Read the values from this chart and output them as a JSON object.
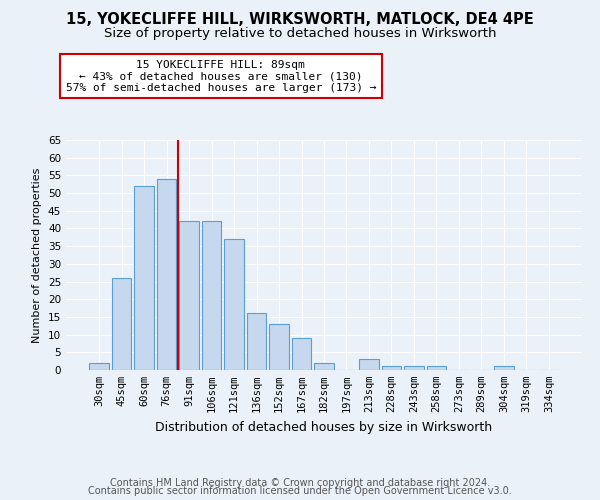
{
  "title1": "15, YOKECLIFFE HILL, WIRKSWORTH, MATLOCK, DE4 4PE",
  "title2": "Size of property relative to detached houses in Wirksworth",
  "xlabel": "Distribution of detached houses by size in Wirksworth",
  "ylabel": "Number of detached properties",
  "categories": [
    "30sqm",
    "45sqm",
    "60sqm",
    "76sqm",
    "91sqm",
    "106sqm",
    "121sqm",
    "136sqm",
    "152sqm",
    "167sqm",
    "182sqm",
    "197sqm",
    "213sqm",
    "228sqm",
    "243sqm",
    "258sqm",
    "273sqm",
    "289sqm",
    "304sqm",
    "319sqm",
    "334sqm"
  ],
  "values": [
    2,
    26,
    52,
    54,
    42,
    42,
    37,
    16,
    13,
    9,
    2,
    0,
    3,
    1,
    1,
    1,
    0,
    0,
    1,
    0,
    0
  ],
  "bar_color": "#c5d8ed",
  "bar_edge_color": "#5a9fd4",
  "vline_x": 3.5,
  "vline_color": "#cc0000",
  "annotation_line1": "15 YOKECLIFFE HILL: 89sqm",
  "annotation_line2": "← 43% of detached houses are smaller (130)",
  "annotation_line3": "57% of semi-detached houses are larger (173) →",
  "ylim": [
    0,
    65
  ],
  "yticks": [
    0,
    5,
    10,
    15,
    20,
    25,
    30,
    35,
    40,
    45,
    50,
    55,
    60,
    65
  ],
  "footer1": "Contains HM Land Registry data © Crown copyright and database right 2024.",
  "footer2": "Contains public sector information licensed under the Open Government Licence v3.0.",
  "bg_color": "#eaf1f8",
  "plot_bg_color": "#eaf1f8",
  "grid_color": "#ffffff",
  "title1_fontsize": 10.5,
  "title2_fontsize": 9.5,
  "xlabel_fontsize": 9,
  "ylabel_fontsize": 8,
  "tick_fontsize": 7.5,
  "ann_fontsize": 8,
  "footer_fontsize": 7
}
